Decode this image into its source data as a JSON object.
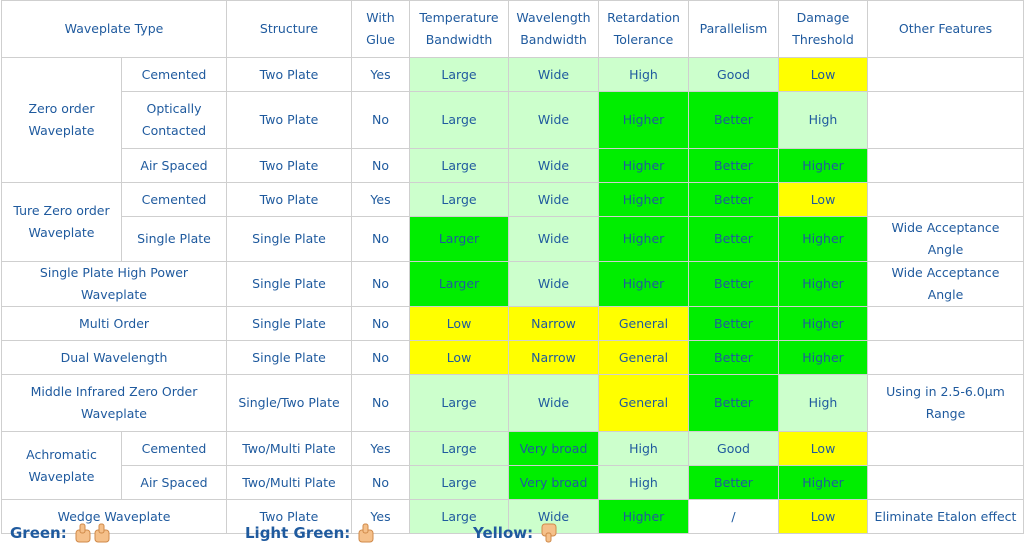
{
  "header": [
    "Waveplate Type",
    "Structure",
    "With Glue",
    "Temperature Bandwidth",
    "Wavelength Bandwidth",
    "Retardation Tolerance",
    "Parallelism",
    "Damage Threshold",
    "Other Features"
  ],
  "groups": [
    {
      "name": "Zero order Waveplate",
      "rows": [
        {
          "subtype": "Cemented",
          "cells": [
            "Two Plate",
            "Yes",
            "Large",
            "Wide",
            "High",
            "Good",
            "Low",
            null
          ],
          "fills": [
            "#ccffcc",
            "#ccffcc",
            "#ccffcc",
            "#ccffcc",
            "#ffff00"
          ]
        },
        {
          "subtype": "Optically Contacted",
          "cells": [
            "Two Plate",
            "No",
            "Large",
            "Wide",
            "Higher",
            "Better",
            "High",
            null
          ],
          "fills": [
            "#ccffcc",
            "#ccffcc",
            "#00ee00",
            "#00ee00",
            "#ccffcc"
          ]
        },
        {
          "subtype": "Air Spaced",
          "cells": [
            "Two Plate",
            "No",
            "Large",
            "Wide",
            "Higher",
            "Better",
            "Higher",
            null
          ],
          "fills": [
            "#ccffcc",
            "#ccffcc",
            "#00ee00",
            "#00ee00",
            "#00ee00"
          ]
        }
      ]
    },
    {
      "name": "Ture Zero order Waveplate",
      "rows": [
        {
          "subtype": "Cemented",
          "cells": [
            "Two Plate",
            "Yes",
            "Large",
            "Wide",
            "Higher",
            "Better",
            "Low",
            null
          ],
          "fills": [
            "#ccffcc",
            "#ccffcc",
            "#00ee00",
            "#00ee00",
            "#ffff00"
          ]
        },
        {
          "subtype": "Single Plate",
          "cells": [
            "Single Plate",
            "No",
            "Larger",
            "Wide",
            "Higher",
            "Better",
            "Higher",
            "Wide Acceptance Angle"
          ],
          "fills": [
            "#00ee00",
            "#ccffcc",
            "#00ee00",
            "#00ee00",
            "#00ee00"
          ]
        }
      ]
    },
    {
      "name": "Single Plate High Power Waveplate",
      "rows": [
        {
          "subtype": null,
          "cells": [
            "Single Plate",
            "No",
            "Larger",
            "Wide",
            "Higher",
            "Better",
            "Higher",
            "Wide Acceptance Angle"
          ],
          "fills": [
            "#00ee00",
            "#ccffcc",
            "#00ee00",
            "#00ee00",
            "#00ee00"
          ]
        }
      ]
    },
    {
      "name": "Multi Order",
      "rows": [
        {
          "subtype": null,
          "cells": [
            "Single Plate",
            "No",
            "Low",
            "Narrow",
            "General",
            "Better",
            "Higher",
            null
          ],
          "fills": [
            "#ffff00",
            "#ffff00",
            "#ffff00",
            "#00ee00",
            "#00ee00"
          ]
        }
      ]
    },
    {
      "name": "Dual Wavelength",
      "rows": [
        {
          "subtype": null,
          "cells": [
            "Single Plate",
            "No",
            "Low",
            "Narrow",
            "General",
            "Better",
            "Higher",
            null
          ],
          "fills": [
            "#ffff00",
            "#ffff00",
            "#ffff00",
            "#00ee00",
            "#00ee00"
          ]
        }
      ]
    },
    {
      "name": "Middle Infrared Zero Order Waveplate",
      "rows": [
        {
          "subtype": null,
          "cells": [
            "Single/Two Plate",
            "No",
            "Large",
            "Wide",
            "General",
            "Better",
            "High",
            "Using in 2.5-6.0μm Range"
          ],
          "fills": [
            "#ccffcc",
            "#ccffcc",
            "#ffff00",
            "#00ee00",
            "#ccffcc"
          ]
        }
      ]
    },
    {
      "name": "Achromatic Waveplate",
      "rows": [
        {
          "subtype": "Cemented",
          "cells": [
            "Two/Multi Plate",
            "Yes",
            "Large",
            "Very broad",
            "High",
            "Good",
            "Low",
            null
          ],
          "fills": [
            "#ccffcc",
            "#00ee00",
            "#ccffcc",
            "#ccffcc",
            "#ffff00"
          ]
        },
        {
          "subtype": "Air Spaced",
          "cells": [
            "Two/Multi Plate",
            "No",
            "Large",
            "Very broad",
            "High",
            "Better",
            "Higher",
            null
          ],
          "fills": [
            "#ccffcc",
            "#00ee00",
            "#ccffcc",
            "#00ee00",
            "#00ee00"
          ]
        }
      ]
    },
    {
      "name": "Wedge Waveplate",
      "rows": [
        {
          "subtype": null,
          "cells": [
            "Two Plate",
            "Yes",
            "Large",
            "Wide",
            "Higher",
            "/",
            "Low",
            "Eliminate Etalon effect"
          ],
          "fills": [
            "#ccffcc",
            "#ccffcc",
            "#00ee00",
            "#ffffff",
            "#ffff00"
          ]
        }
      ]
    }
  ],
  "legend": [
    "Green:",
    "Light Green:",
    "Yellow:"
  ]
}
